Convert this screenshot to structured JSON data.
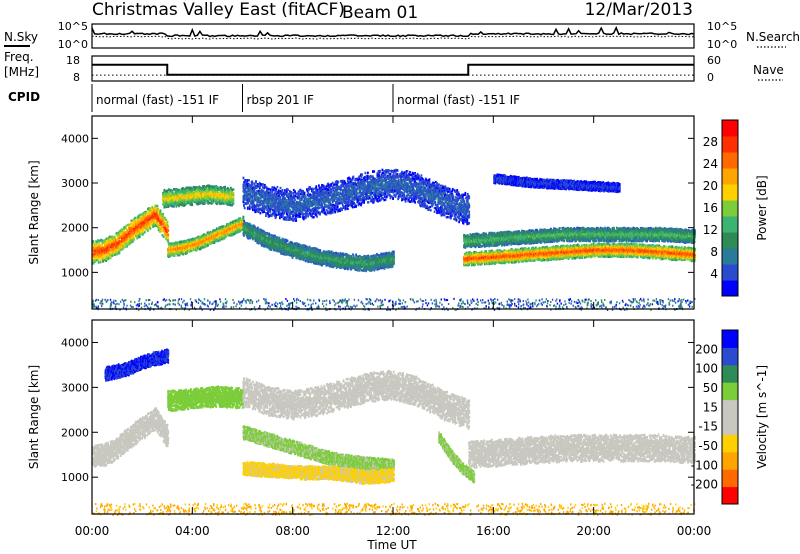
{
  "chart_data": {
    "type": "heatmap",
    "header": {
      "title": "Christmas Valley East (fitACF)",
      "beam": "Beam 01",
      "date": "12/Mar/2013"
    },
    "noise_panel": {
      "left_label": "N.Sky",
      "right_label": "N.Search",
      "ticks_left": [
        "10^5",
        "10^0"
      ],
      "ticks_right": [
        "10^5",
        "10^0"
      ]
    },
    "freq_panel": {
      "left_label_line1": "Freq.",
      "left_label_line2": "[MHz]",
      "right_label": "Nave",
      "ticks_left": [
        "18",
        "8"
      ],
      "ticks_right": [
        "60",
        "0"
      ],
      "freq_mhz_segments": [
        {
          "start_h": 0.0,
          "end_h": 3.0,
          "value": 14.5
        },
        {
          "start_h": 3.0,
          "end_h": 15.0,
          "value": 10.5
        },
        {
          "start_h": 15.0,
          "end_h": 24.0,
          "value": 14.5
        }
      ],
      "nave_level": 14
    },
    "cpid": {
      "label": "CPID",
      "segments": [
        {
          "start_h": 0.0,
          "end_h": 6.0,
          "text": "normal (fast) -151 IF"
        },
        {
          "start_h": 6.0,
          "end_h": 12.0,
          "text": "rbsp 201 IF"
        },
        {
          "start_h": 12.0,
          "end_h": 24.0,
          "text": "normal (fast) -151 IF"
        }
      ]
    },
    "x_axis": {
      "label": "Time UT",
      "range_h": [
        0,
        24
      ],
      "tick_labels": [
        "00:00",
        "04:00",
        "08:00",
        "12:00",
        "16:00",
        "20:00",
        "00:00"
      ],
      "tick_hours": [
        0,
        4,
        8,
        12,
        16,
        20,
        24
      ]
    },
    "panels": [
      {
        "name": "power",
        "ylabel": "Slant Range [km]",
        "yticks": [
          1000,
          2000,
          3000,
          4000
        ],
        "ylim": [
          180,
          4500
        ],
        "colorbar": {
          "label": "Power [dB]",
          "ticks": [
            "28",
            "24",
            "20",
            "16",
            "12",
            "8",
            "4"
          ],
          "colors": [
            "#0000ff",
            "#2a4bd0",
            "#2a7a9a",
            "#2e8b57",
            "#3cb371",
            "#7ccd3a",
            "#ffd000",
            "#ffa500",
            "#ff6a00",
            "#ff3000",
            "#ff0000"
          ]
        },
        "bands": [
          {
            "t0": 0.0,
            "t1": 3.0,
            "center_km": [
              1450,
              1500,
              1650,
              1900,
              2100,
              2300,
              1900
            ],
            "width_km": 500,
            "value_db": 28
          },
          {
            "t0": 3.0,
            "t1": 6.0,
            "center_km": [
              1500,
              1550,
              1650,
              1800,
              1950,
              2100
            ],
            "width_km": 300,
            "value_db": 24
          },
          {
            "t0": 2.8,
            "t1": 5.6,
            "center_km": [
              2650,
              2700,
              2750,
              2700
            ],
            "width_km": 400,
            "value_db": 20
          },
          {
            "t0": 6.0,
            "t1": 12.0,
            "center_km": [
              2000,
              1700,
              1500,
              1350,
              1250,
              1200,
              1300
            ],
            "width_km": 350,
            "value_db": 12
          },
          {
            "t0": 6.0,
            "t1": 15.0,
            "center_km": [
              2800,
              2600,
              2500,
              2600,
              2750,
              2900,
              3000,
              2850,
              2600,
              2400
            ],
            "width_km": 700,
            "value_db": 6
          },
          {
            "t0": 14.8,
            "t1": 24.0,
            "center_km": [
              1300,
              1350,
              1400,
              1450,
              1500,
              1500,
              1450,
              1400
            ],
            "width_km": 300,
            "value_db": 27
          },
          {
            "t0": 14.8,
            "t1": 24.0,
            "center_km": [
              1700,
              1750,
              1800,
              1850,
              1850,
              1850,
              1850,
              1800
            ],
            "width_km": 300,
            "value_db": 14
          },
          {
            "t0": 16.0,
            "t1": 21.0,
            "center_km": [
              3100,
              3000,
              2950,
              2900
            ],
            "width_km": 200,
            "value_db": 4
          }
        ]
      },
      {
        "name": "velocity",
        "ylabel": "Slant Range [km]",
        "yticks": [
          1000,
          2000,
          3000,
          4000
        ],
        "ylim": [
          180,
          4500
        ],
        "colorbar": {
          "label": "Velocity [m s^-1]",
          "ticks": [
            "200",
            "100",
            "50",
            "15",
            "-15",
            "-50",
            "-100",
            "-200"
          ],
          "colors": [
            "#ff0000",
            "#ff6a00",
            "#ffa500",
            "#ffd000",
            "#c8c8c0",
            "#c8c8c0",
            "#7ccd3a",
            "#2e8b57",
            "#2a4bd0",
            "#0000ff"
          ]
        },
        "bands": [
          {
            "t0": 0.0,
            "t1": 3.0,
            "center_km": [
              1450,
              1500,
              1650,
              1900,
              2100,
              2300,
              1900
            ],
            "width_km": 500,
            "value_ms": 0
          },
          {
            "t0": 3.0,
            "t1": 6.0,
            "center_km": [
              2700,
              2750,
              2800,
              2750
            ],
            "width_km": 450,
            "value_ms": 80
          },
          {
            "t0": 0.5,
            "t1": 3.0,
            "center_km": [
              3300,
              3400,
              3600,
              3700
            ],
            "width_km": 300,
            "value_ms": 200
          },
          {
            "t0": 6.0,
            "t1": 12.0,
            "center_km": [
              2000,
              1800,
              1600,
              1400,
              1300,
              1250
            ],
            "width_km": 300,
            "value_ms": 60
          },
          {
            "t0": 6.0,
            "t1": 12.0,
            "center_km": [
              1200,
              1150,
              1100,
              1100,
              1000,
              1050
            ],
            "width_km": 300,
            "value_ms": -60
          },
          {
            "t0": 6.0,
            "t1": 15.0,
            "center_km": [
              2900,
              2700,
              2600,
              2700,
              2850,
              3000,
              3050,
              2900,
              2600,
              2400
            ],
            "width_km": 650,
            "value_ms": 0
          },
          {
            "t0": 13.8,
            "t1": 15.2,
            "center_km": [
              1900,
              1500,
              1200,
              1000
            ],
            "width_km": 250,
            "value_ms": 60
          },
          {
            "t0": 15.0,
            "t1": 24.0,
            "center_km": [
              1500,
              1550,
              1600,
              1650,
              1650,
              1650,
              1650,
              1600
            ],
            "width_km": 600,
            "value_ms": 0
          }
        ]
      }
    ]
  }
}
